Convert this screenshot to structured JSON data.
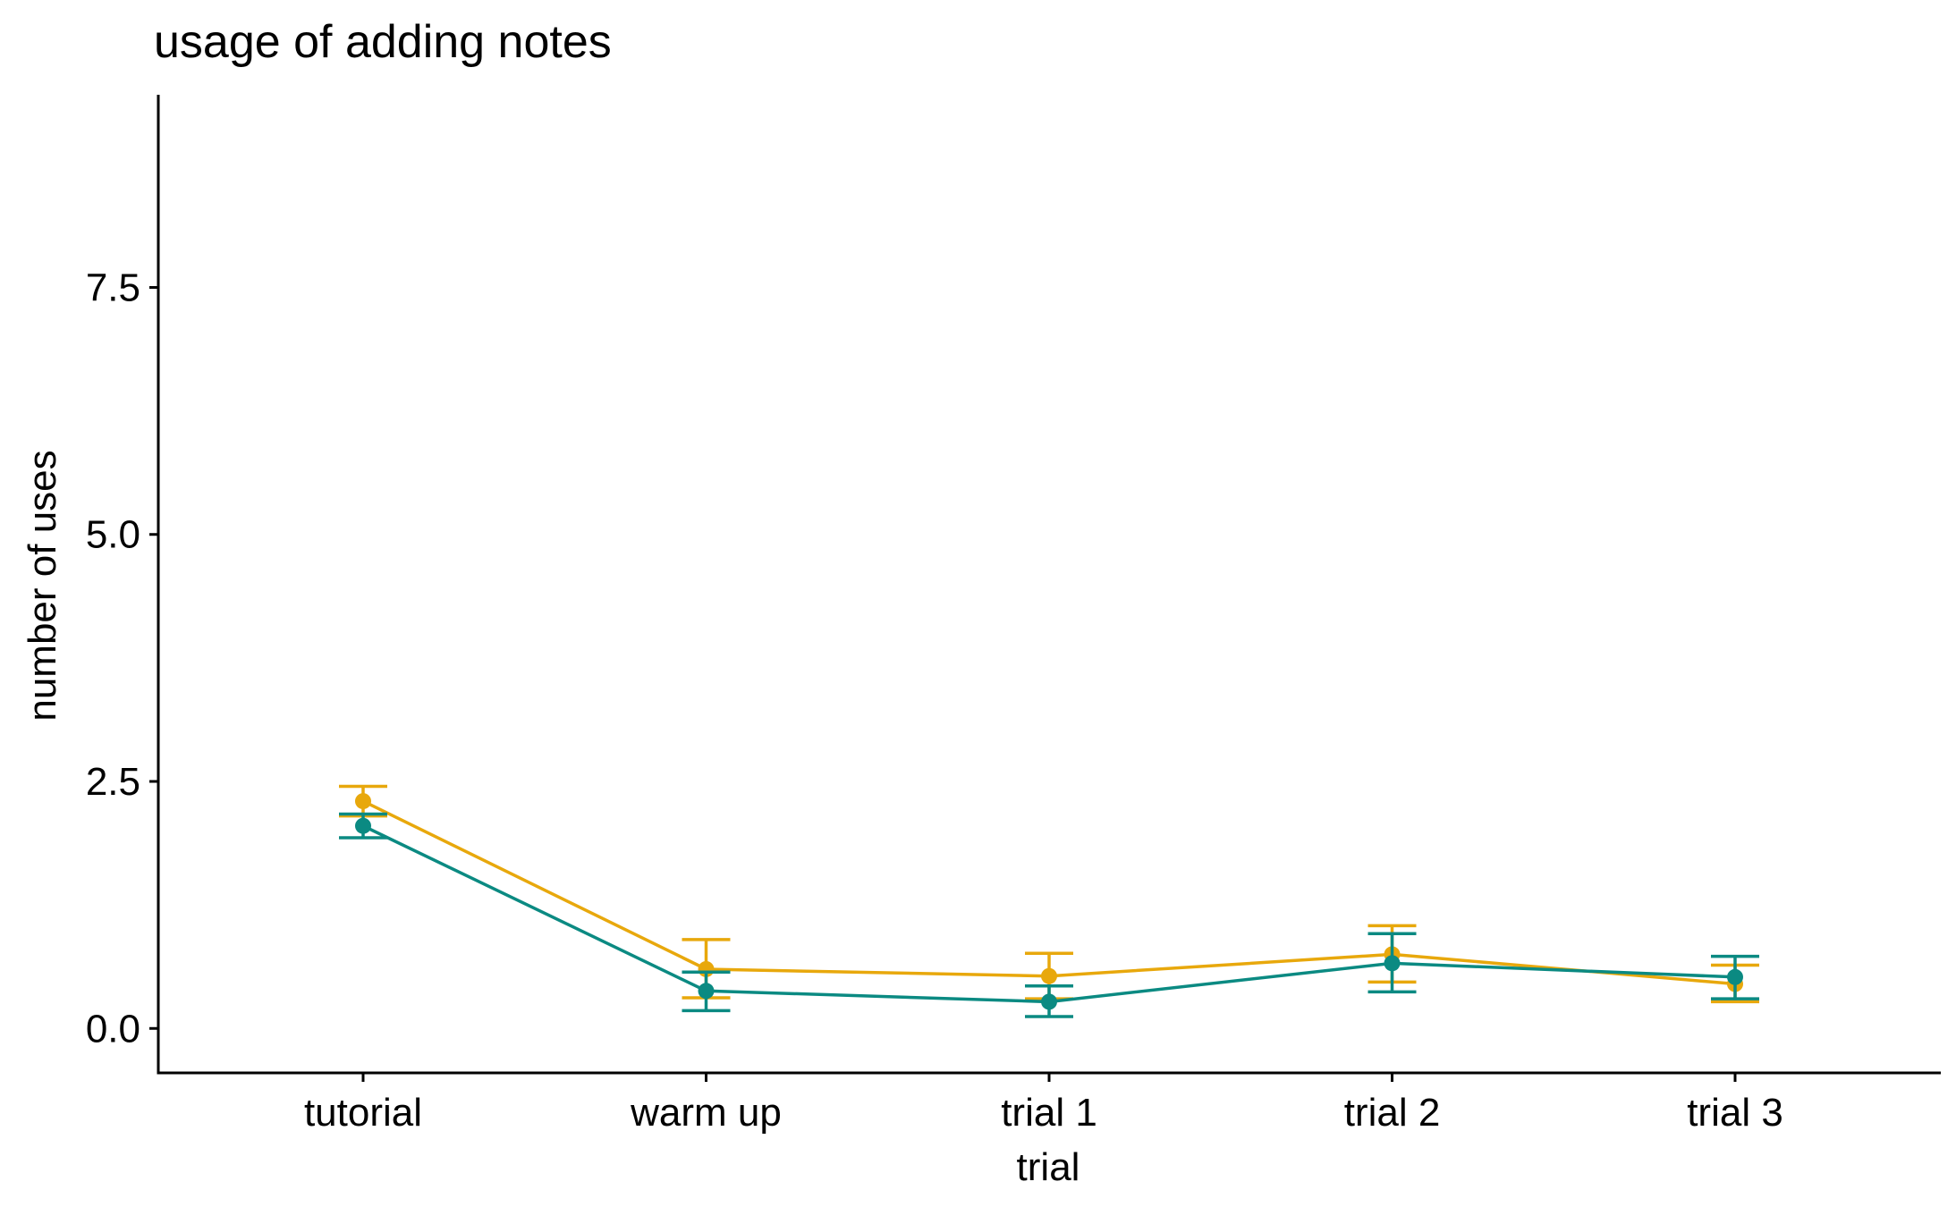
{
  "chart_data": {
    "type": "line",
    "title": "usage of adding notes",
    "xlabel": "trial",
    "ylabel": "number of uses",
    "categories": [
      "tutorial",
      "warm up",
      "trial 1",
      "trial 2",
      "trial 3"
    ],
    "ylim": [
      -0.45,
      9.45
    ],
    "yticks": [
      0.0,
      2.5,
      5.0,
      7.5
    ],
    "ytick_labels": [
      "0.0",
      "2.5",
      "5.0",
      "7.5"
    ],
    "grid": false,
    "legend": "none",
    "series": [
      {
        "color": "#E8A80C",
        "values": [
          2.3,
          0.6,
          0.53,
          0.75,
          0.45
        ],
        "err_low": [
          2.15,
          0.31,
          0.3,
          0.47,
          0.27
        ],
        "err_high": [
          2.45,
          0.9,
          0.76,
          1.04,
          0.64
        ]
      },
      {
        "color": "#0B8A82",
        "values": [
          2.05,
          0.38,
          0.27,
          0.66,
          0.52
        ],
        "err_low": [
          1.93,
          0.18,
          0.12,
          0.37,
          0.3
        ],
        "err_high": [
          2.17,
          0.57,
          0.43,
          0.96,
          0.73
        ]
      }
    ]
  }
}
